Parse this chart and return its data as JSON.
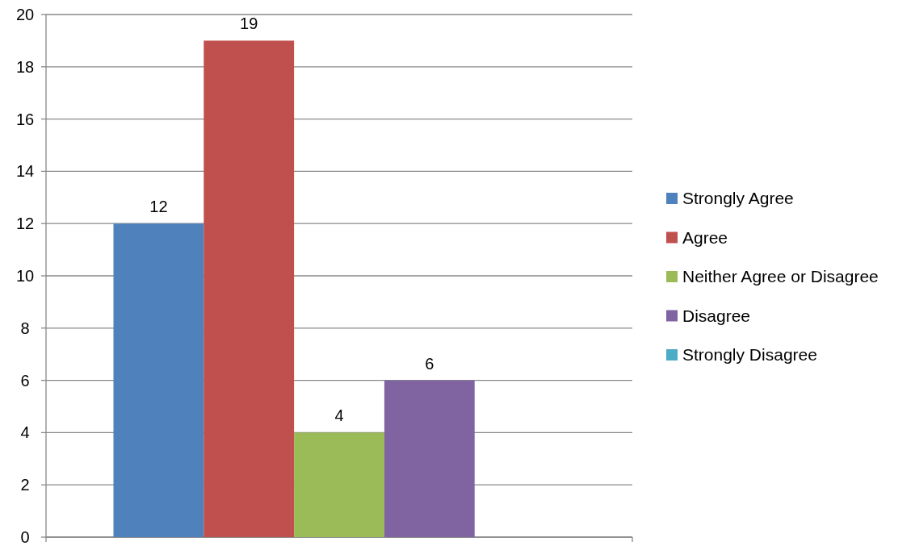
{
  "chart_data": {
    "type": "bar",
    "categories": [
      null
    ],
    "series": [
      {
        "name": "Strongly Agree",
        "color": "#4f81bd",
        "values": [
          12
        ],
        "value_labels": [
          "12"
        ]
      },
      {
        "name": "Agree",
        "color": "#c0504d",
        "values": [
          19
        ],
        "value_labels": [
          "19"
        ]
      },
      {
        "name": "Neither Agree or Disagree",
        "color": "#9bbb59",
        "values": [
          4
        ],
        "value_labels": [
          "4"
        ]
      },
      {
        "name": "Disagree",
        "color": "#8064a2",
        "values": [
          6
        ],
        "value_labels": [
          "6"
        ]
      },
      {
        "name": "Strongly Disagree",
        "color": "#4bacc6",
        "values": [
          0
        ],
        "value_labels": [
          null
        ]
      }
    ],
    "ylim": [
      0,
      20
    ],
    "yticks": [
      0,
      2,
      4,
      6,
      8,
      10,
      12,
      14,
      16,
      18,
      20
    ],
    "grid": "y",
    "legend": "right"
  }
}
